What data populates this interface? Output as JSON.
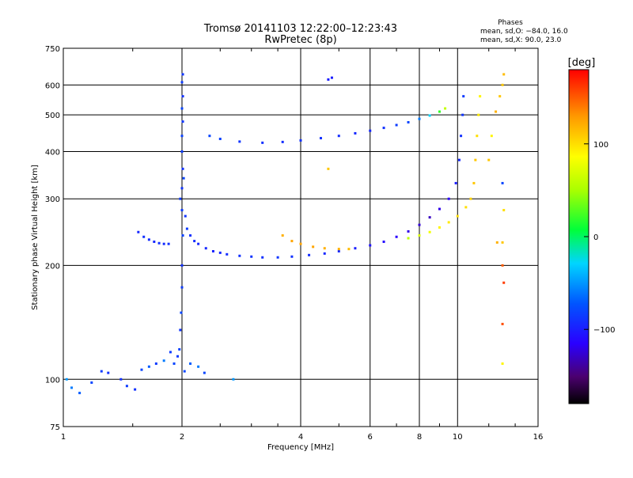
{
  "header": {
    "title_line1": "Tromsø 20141103 12:22:00–12:23:43",
    "title_line2": "RwPretec (8p)"
  },
  "phases_box": {
    "title": "Phases",
    "line_o": "mean, sd,O: −84.0, 16.0",
    "line_x": "mean, sd,X:  90.0, 23.0"
  },
  "colorbar": {
    "unit_label": "[deg]",
    "tick_labels": [
      "100",
      "0",
      "−100"
    ],
    "tick_values": [
      100,
      0,
      -100
    ],
    "range": [
      -180,
      180
    ]
  },
  "chart_data": {
    "type": "scatter",
    "title": "Tromsø 20141103 12:22:00–12:23:43",
    "subtitle": "RwPretec (8p)",
    "xlabel": "Frequency [MHz]",
    "ylabel": "Stationary phase Virtual Height [km]",
    "xscale": "log",
    "yscale": "log",
    "xlim": [
      1,
      16
    ],
    "ylim": [
      75,
      750
    ],
    "x_ticks": [
      1,
      2,
      4,
      6,
      8,
      10,
      16
    ],
    "x_tick_labels": [
      "1",
      "2",
      "4",
      "6",
      "8",
      "10",
      "16"
    ],
    "y_ticks": [
      75,
      100,
      200,
      300,
      400,
      500,
      600,
      750
    ],
    "y_tick_labels": [
      "75",
      "100",
      "200",
      "300",
      "400",
      "500",
      "600",
      "750"
    ],
    "grid": true,
    "color_encoding": "phase (deg)",
    "series": [
      {
        "trace": "O-mode F-layer",
        "points": [
          [
            1.91,
            110,
            -80
          ],
          [
            1.95,
            115,
            -85
          ],
          [
            1.97,
            120,
            -82
          ],
          [
            1.98,
            135,
            -88
          ],
          [
            1.99,
            150,
            -80
          ],
          [
            2.0,
            175,
            -85
          ],
          [
            2.0,
            200,
            -90
          ],
          [
            2.01,
            240,
            -82
          ],
          [
            2.0,
            280,
            -85
          ],
          [
            2.0,
            320,
            -88
          ],
          [
            2.01,
            360,
            -90
          ],
          [
            2.0,
            400,
            -85
          ],
          [
            2.0,
            440,
            -82
          ],
          [
            2.01,
            480,
            -88
          ],
          [
            2.0,
            520,
            -80
          ],
          [
            2.01,
            560,
            -90
          ],
          [
            2.0,
            610,
            -85
          ],
          [
            2.01,
            640,
            -88
          ],
          [
            1.98,
            300,
            -85
          ],
          [
            2.02,
            340,
            -80
          ],
          [
            2.04,
            270,
            -88
          ],
          [
            2.06,
            250,
            -85
          ],
          [
            2.1,
            240,
            -90
          ],
          [
            2.15,
            232,
            -92
          ],
          [
            2.2,
            228,
            -95
          ],
          [
            2.3,
            222,
            -95
          ],
          [
            2.4,
            218,
            -98
          ],
          [
            2.5,
            216,
            -95
          ],
          [
            2.6,
            214,
            -92
          ],
          [
            2.8,
            212,
            -90
          ],
          [
            3.0,
            211,
            -88
          ],
          [
            3.2,
            210,
            -90
          ],
          [
            3.5,
            210,
            -88
          ],
          [
            3.8,
            211,
            -90
          ],
          [
            4.2,
            213,
            -92
          ],
          [
            4.6,
            215,
            -95
          ],
          [
            5.0,
            218,
            -95
          ],
          [
            5.5,
            222,
            -100
          ],
          [
            6.0,
            226,
            -105
          ],
          [
            6.5,
            231,
            -110
          ],
          [
            7.0,
            238,
            -115
          ],
          [
            7.5,
            246,
            -120
          ],
          [
            8.0,
            256,
            -125
          ],
          [
            8.5,
            268,
            -130
          ],
          [
            9.0,
            282,
            -120
          ],
          [
            9.5,
            300,
            -115
          ],
          [
            9.9,
            330,
            -100
          ],
          [
            10.1,
            380,
            -95
          ],
          [
            10.2,
            440,
            -90
          ],
          [
            10.3,
            500,
            -88
          ],
          [
            10.35,
            560,
            -85
          ]
        ]
      },
      {
        "trace": "X-mode F-layer",
        "points": [
          [
            7.5,
            236,
            60
          ],
          [
            8.0,
            240,
            70
          ],
          [
            8.5,
            245,
            80
          ],
          [
            9.0,
            252,
            90
          ],
          [
            9.5,
            260,
            95
          ],
          [
            10.0,
            270,
            100
          ],
          [
            10.5,
            285,
            100
          ],
          [
            10.8,
            300,
            105
          ],
          [
            11.0,
            330,
            110
          ],
          [
            11.1,
            380,
            110
          ],
          [
            11.2,
            440,
            100
          ],
          [
            11.3,
            500,
            95
          ],
          [
            11.4,
            560,
            90
          ]
        ]
      },
      {
        "trace": "O-mode upper trace",
        "points": [
          [
            2.35,
            440,
            -80
          ],
          [
            2.5,
            432,
            -82
          ],
          [
            2.8,
            425,
            -88
          ],
          [
            3.2,
            422,
            -90
          ],
          [
            3.6,
            424,
            -92
          ],
          [
            4.0,
            428,
            -90
          ],
          [
            4.5,
            434,
            -90
          ],
          [
            5.0,
            440,
            -92
          ],
          [
            5.5,
            447,
            -95
          ],
          [
            6.0,
            454,
            -95
          ],
          [
            6.5,
            462,
            -90
          ],
          [
            7.0,
            470,
            -85
          ],
          [
            7.5,
            478,
            -80
          ],
          [
            8.0,
            488,
            -60
          ],
          [
            8.5,
            498,
            -30
          ],
          [
            9.0,
            510,
            20
          ],
          [
            9.3,
            520,
            60
          ]
        ]
      },
      {
        "trace": "orange segment",
        "points": [
          [
            3.6,
            240,
            120
          ],
          [
            3.8,
            232,
            125
          ],
          [
            4.0,
            228,
            125
          ],
          [
            4.3,
            224,
            125
          ],
          [
            4.6,
            222,
            120
          ],
          [
            5.0,
            221,
            120
          ],
          [
            5.3,
            221,
            115
          ]
        ]
      },
      {
        "trace": "low-height scatter",
        "points": [
          [
            1.02,
            100,
            -50
          ],
          [
            1.05,
            95,
            -60
          ],
          [
            1.1,
            92,
            -70
          ],
          [
            1.18,
            98,
            -80
          ],
          [
            1.25,
            105,
            -85
          ],
          [
            1.3,
            104,
            -90
          ],
          [
            1.4,
            100,
            -90
          ],
          [
            1.45,
            96,
            -85
          ],
          [
            1.52,
            94,
            -90
          ],
          [
            1.58,
            106,
            -80
          ],
          [
            1.65,
            108,
            -70
          ],
          [
            1.72,
            110,
            -85
          ],
          [
            1.8,
            112,
            -60
          ],
          [
            1.87,
            118,
            -85
          ],
          [
            2.03,
            105,
            -80
          ],
          [
            2.1,
            110,
            -70
          ],
          [
            2.2,
            108,
            -60
          ],
          [
            2.28,
            104,
            -80
          ]
        ]
      },
      {
        "trace": "E-layer segment",
        "points": [
          [
            1.55,
            245,
            -95
          ],
          [
            1.6,
            238,
            -90
          ],
          [
            1.65,
            234,
            -92
          ],
          [
            1.7,
            231,
            -95
          ],
          [
            1.75,
            229,
            -90
          ],
          [
            1.8,
            228,
            -92
          ],
          [
            1.85,
            228,
            -90
          ]
        ]
      },
      {
        "trace": "sparse high-frequency points",
        "points": [
          [
            4.7,
            620,
            -100
          ],
          [
            4.8,
            627,
            -100
          ],
          [
            12.0,
            380,
            110
          ],
          [
            12.2,
            440,
            90
          ],
          [
            12.5,
            510,
            120
          ],
          [
            12.8,
            560,
            110
          ],
          [
            13.0,
            600,
            110
          ],
          [
            13.1,
            640,
            115
          ],
          [
            13.0,
            330,
            -80
          ],
          [
            13.1,
            280,
            100
          ],
          [
            13.0,
            230,
            110
          ],
          [
            13.0,
            200,
            150
          ],
          [
            13.1,
            180,
            160
          ],
          [
            13.0,
            140,
            155
          ],
          [
            13.0,
            110,
            90
          ],
          [
            12.6,
            230,
            120
          ],
          [
            4.7,
            360,
            110
          ],
          [
            2.7,
            100,
            -50
          ]
        ]
      }
    ]
  }
}
